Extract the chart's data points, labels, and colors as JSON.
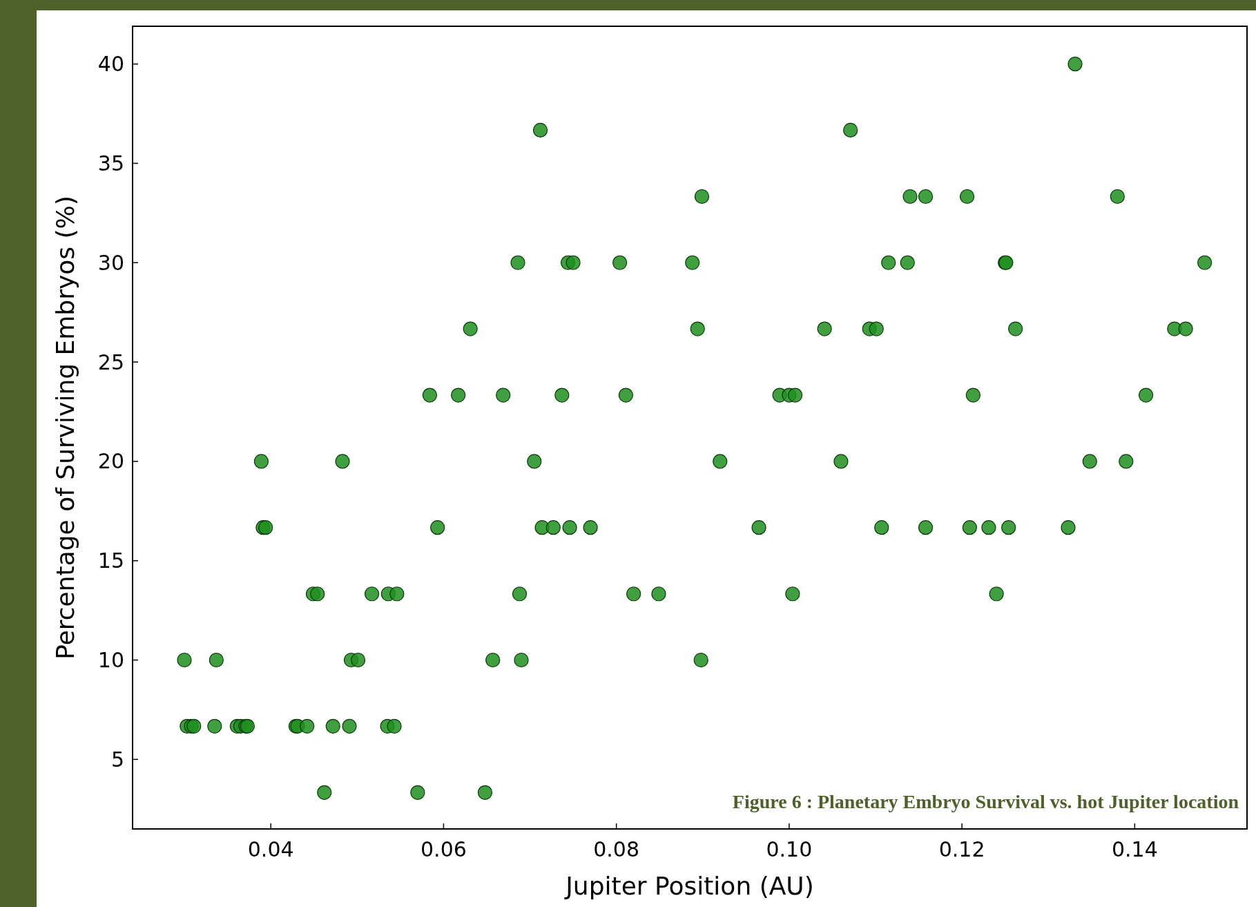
{
  "chart_data": {
    "type": "scatter",
    "xlabel": "Jupiter Position (AU)",
    "ylabel": "Percentage of Surviving Embryos (%)",
    "annotations": [
      "Figure 6 :  Planetary Embryo Survival vs. hot Jupiter location"
    ],
    "xlim": [
      0.024,
      0.153
    ],
    "ylim": [
      1.5,
      41.9
    ],
    "xticks": [
      {
        "value": 0.04,
        "label": "0.04"
      },
      {
        "value": 0.06,
        "label": "0.06"
      },
      {
        "value": 0.08,
        "label": "0.08"
      },
      {
        "value": 0.1,
        "label": "0.10"
      },
      {
        "value": 0.12,
        "label": "0.12"
      },
      {
        "value": 0.14,
        "label": "0.14"
      }
    ],
    "yticks": [
      5,
      10,
      15,
      20,
      25,
      30,
      35,
      40
    ],
    "grid": false,
    "marker": "circle",
    "series": [
      {
        "color": "#1f8f1f",
        "x": [
          0.0462,
          0.057,
          0.0648,
          0.0303,
          0.0308,
          0.0311,
          0.0335,
          0.0361,
          0.0365,
          0.0371,
          0.0373,
          0.0429,
          0.0431,
          0.0442,
          0.0472,
          0.0491,
          0.0535,
          0.0543,
          0.03,
          0.0337,
          0.0493,
          0.0501,
          0.0657,
          0.069,
          0.0898,
          0.0449,
          0.0454,
          0.0517,
          0.0536,
          0.0546,
          0.0688,
          0.082,
          0.0849,
          0.1004,
          0.124,
          0.0391,
          0.0394,
          0.0593,
          0.0714,
          0.0727,
          0.0746,
          0.077,
          0.0965,
          0.1107,
          0.1158,
          0.1209,
          0.1231,
          0.1254,
          0.1323,
          0.0389,
          0.0483,
          0.0705,
          0.092,
          0.106,
          0.1348,
          0.139,
          0.0584,
          0.0617,
          0.0669,
          0.0737,
          0.0811,
          0.0989,
          0.1,
          0.1007,
          0.1213,
          0.1413,
          0.0631,
          0.0894,
          0.1041,
          0.1093,
          0.1101,
          0.1262,
          0.1446,
          0.1459,
          0.0686,
          0.0744,
          0.075,
          0.0804,
          0.0888,
          0.1115,
          0.1137,
          0.125,
          0.1251,
          0.1481,
          0.0899,
          0.114,
          0.1158,
          0.1206,
          0.138,
          0.0712,
          0.1071,
          0.1331
        ],
        "values": [
          3.33,
          3.33,
          3.33,
          6.67,
          6.67,
          6.67,
          6.67,
          6.67,
          6.67,
          6.67,
          6.67,
          6.67,
          6.67,
          6.67,
          6.67,
          6.67,
          6.67,
          6.67,
          10,
          10,
          10,
          10,
          10,
          10,
          10,
          13.33,
          13.33,
          13.33,
          13.33,
          13.33,
          13.33,
          13.33,
          13.33,
          13.33,
          13.33,
          16.67,
          16.67,
          16.67,
          16.67,
          16.67,
          16.67,
          16.67,
          16.67,
          16.67,
          16.67,
          16.67,
          16.67,
          16.67,
          16.67,
          20,
          20,
          20,
          20,
          20,
          20,
          20,
          23.33,
          23.33,
          23.33,
          23.33,
          23.33,
          23.33,
          23.33,
          23.33,
          23.33,
          23.33,
          26.67,
          26.67,
          26.67,
          26.67,
          26.67,
          26.67,
          26.67,
          26.67,
          30,
          30,
          30,
          30,
          30,
          30,
          30,
          30,
          30,
          30,
          33.33,
          33.33,
          33.33,
          33.33,
          33.33,
          36.67,
          36.67,
          40
        ]
      }
    ]
  }
}
